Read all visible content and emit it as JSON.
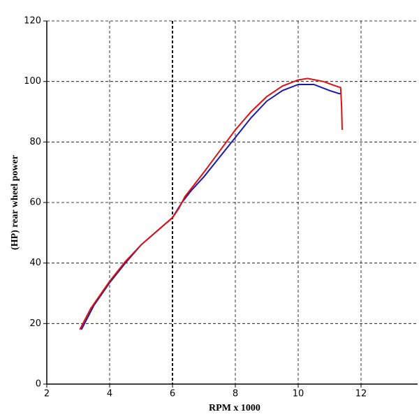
{
  "chart_data": {
    "type": "line",
    "x_label": "RPM x 1000",
    "y_label": "(HP) rear wheel power",
    "xlim": [
      2,
      13.8
    ],
    "xticks": [
      2,
      4,
      6,
      8,
      10,
      12
    ],
    "ylim": [
      0,
      120
    ],
    "yticks": [
      0,
      20,
      40,
      60,
      80,
      100,
      120
    ],
    "grid": true,
    "grid_style": "dashed",
    "highlight_xtick": 6,
    "series": [
      {
        "color": "#1a1ab0",
        "x": [
          3.1,
          3.3,
          3.5,
          4,
          4.5,
          5,
          5.5,
          6,
          6.3,
          6.6,
          7,
          7.5,
          8,
          8.5,
          9,
          9.5,
          10,
          10.5,
          11,
          11.3,
          11.35
        ],
        "values": [
          18,
          22,
          26,
          33.5,
          40,
          46,
          50.5,
          55,
          60,
          64,
          68.5,
          75,
          81.5,
          88,
          93.5,
          97,
          99,
          99,
          97,
          96,
          96
        ]
      },
      {
        "color": "#e01010",
        "x": [
          3.05,
          3.2,
          3.4,
          3.6,
          4,
          4.5,
          5,
          5.5,
          6,
          6.2,
          6.4,
          6.7,
          7,
          7.5,
          8,
          8.5,
          9,
          9.5,
          10,
          10.3,
          10.8,
          11.2,
          11.35,
          11.38,
          11.4
        ],
        "values": [
          18,
          21,
          25,
          28,
          34,
          40.5,
          46,
          50.5,
          55,
          58,
          62,
          66,
          70,
          77,
          84,
          90,
          95,
          98.5,
          100.5,
          101,
          100,
          98.5,
          98,
          92,
          84
        ]
      }
    ]
  }
}
